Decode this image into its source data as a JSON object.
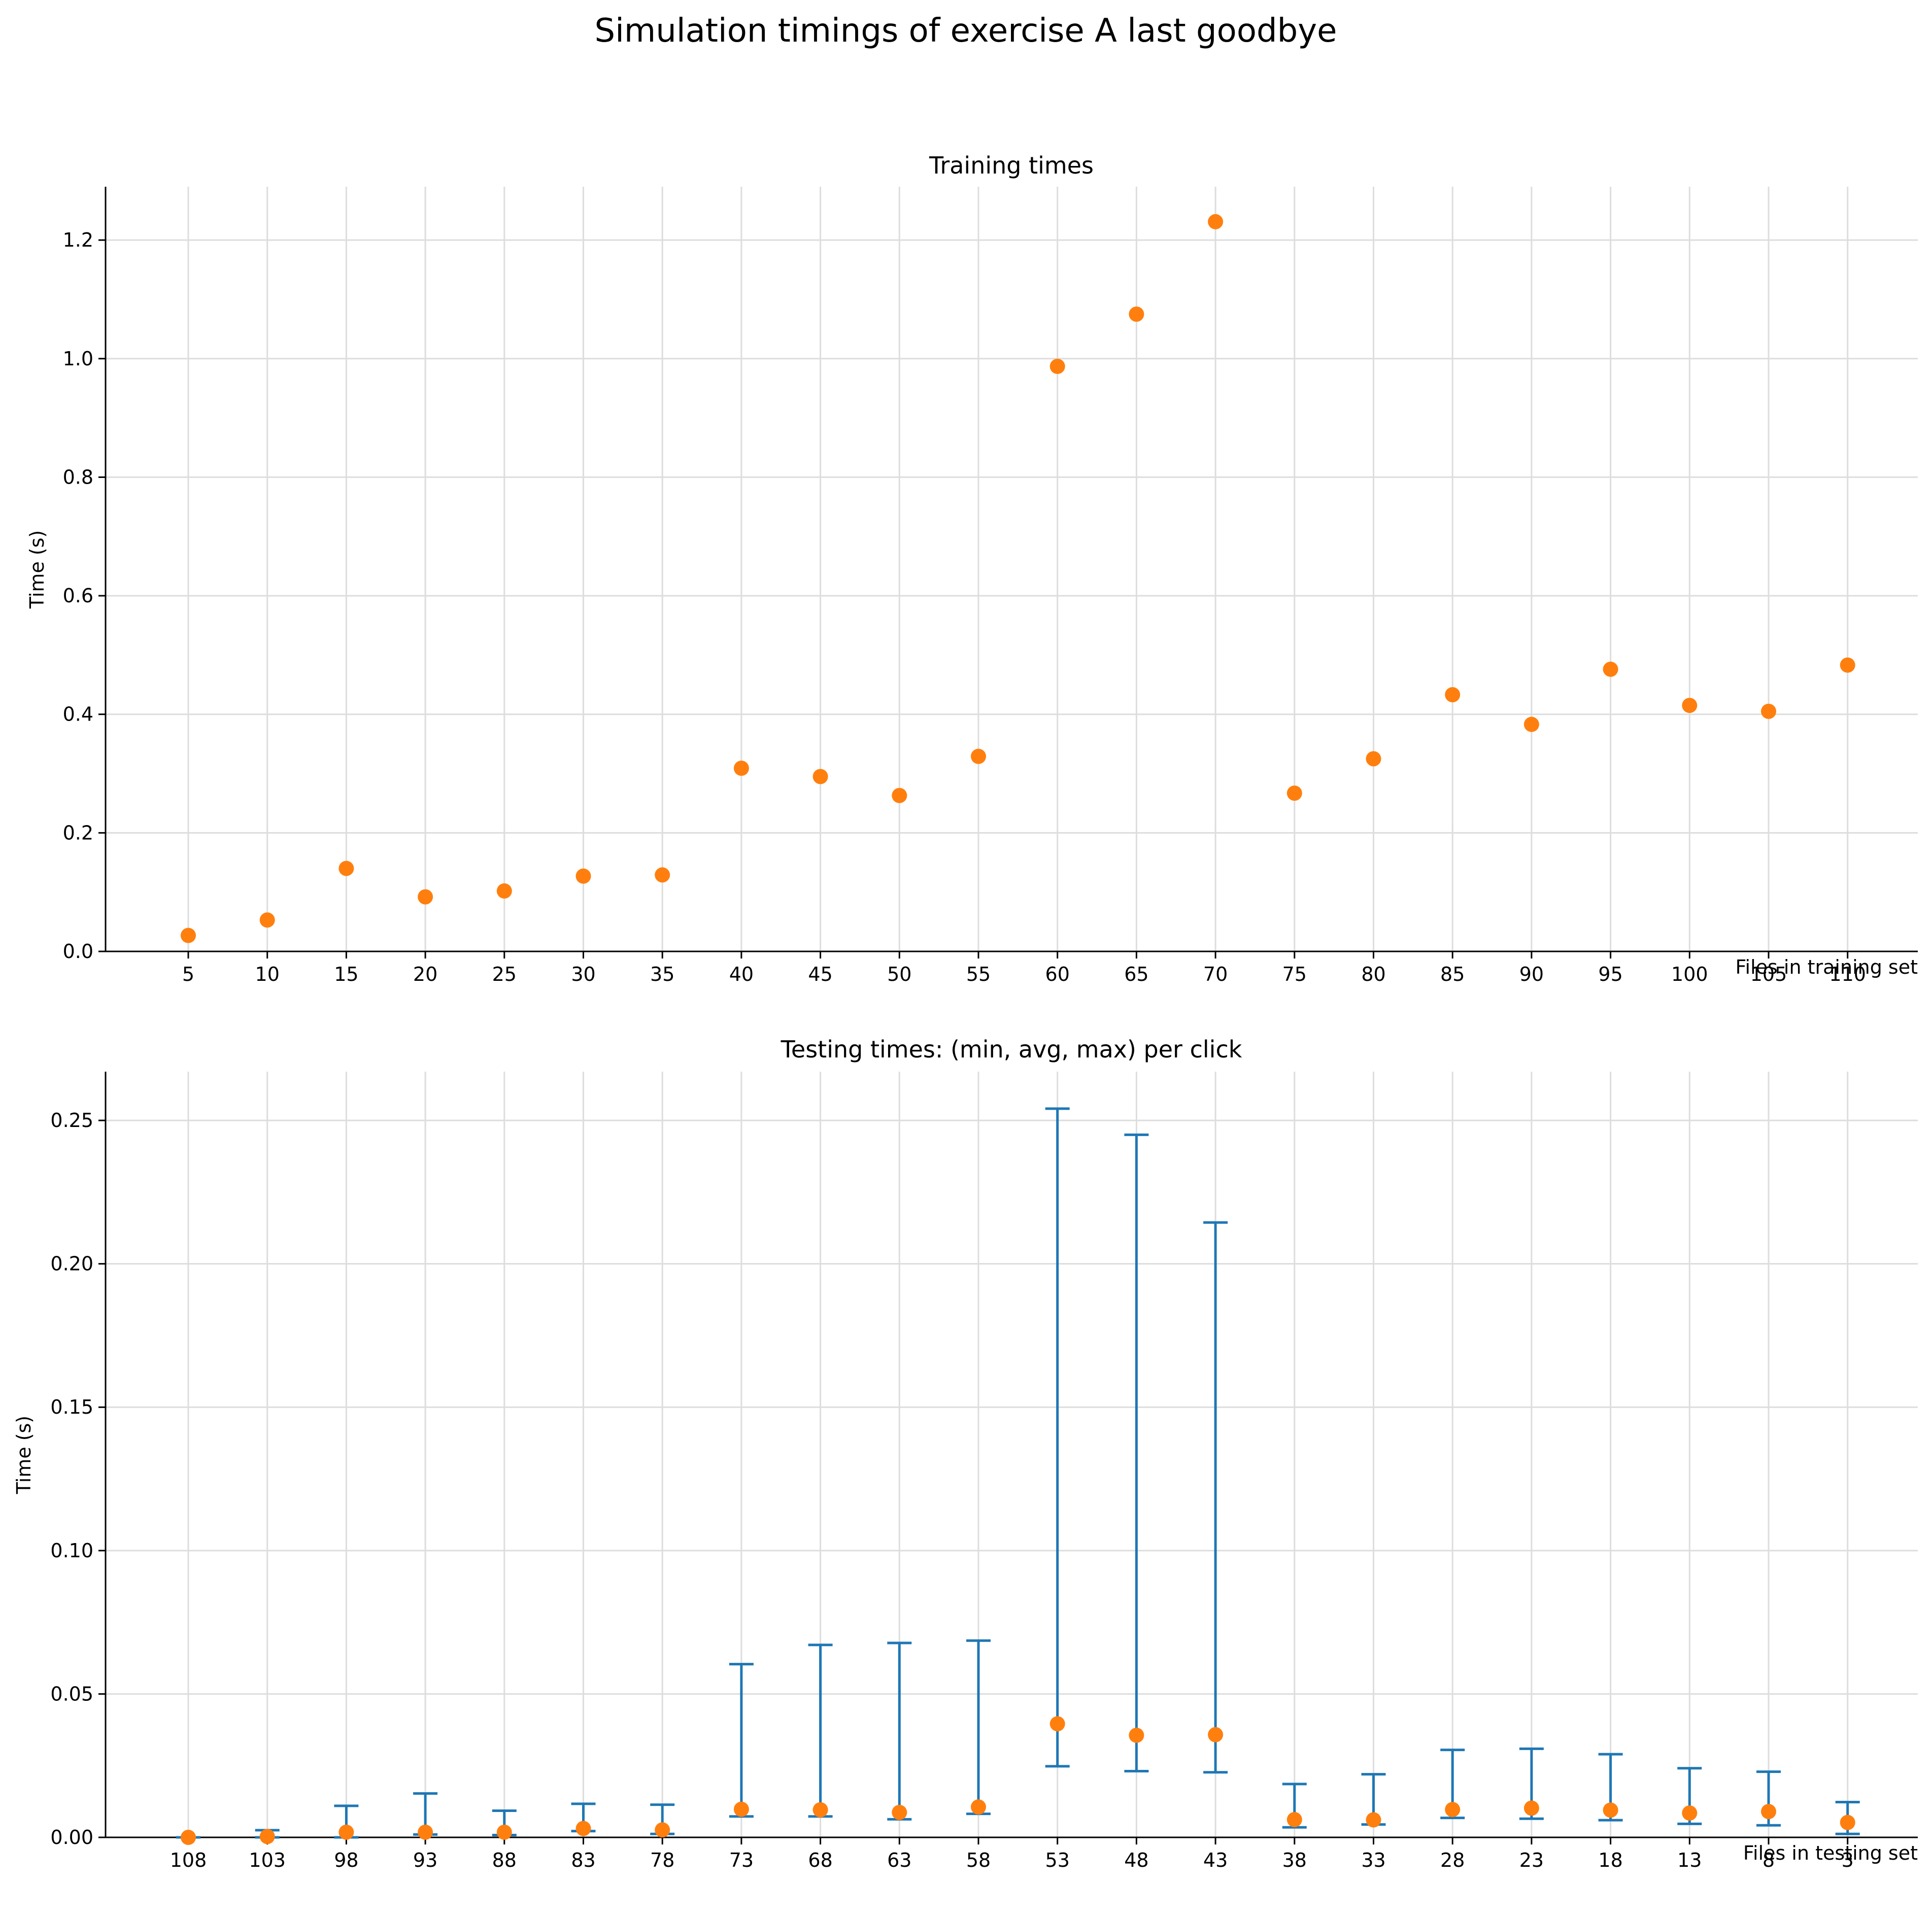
{
  "figure": {
    "title": "Simulation timings of exercise A last goodbye"
  },
  "colors": {
    "point": "#ff7f0e",
    "errorbar": "#1f77b4",
    "grid": "#dddddd"
  },
  "chart_data": [
    {
      "type": "scatter",
      "title": "Training times",
      "xlabel": "Files in training set",
      "ylabel": "Time (s)",
      "categories": [
        "5",
        "10",
        "15",
        "20",
        "25",
        "30",
        "35",
        "40",
        "45",
        "50",
        "55",
        "60",
        "65",
        "70",
        "75",
        "80",
        "85",
        "90",
        "95",
        "100",
        "105",
        "110"
      ],
      "values": [
        0.027,
        0.053,
        0.14,
        0.092,
        0.102,
        0.127,
        0.129,
        0.309,
        0.295,
        0.263,
        0.329,
        0.987,
        1.075,
        1.231,
        0.267,
        0.325,
        0.433,
        0.383,
        0.476,
        0.415,
        0.405,
        0.483
      ],
      "ylim": [
        0,
        1.29
      ],
      "yticks": [
        "0.0",
        "0.2",
        "0.4",
        "0.6",
        "0.8",
        "1.0",
        "1.2"
      ],
      "grid": true,
      "legend": "none"
    },
    {
      "type": "errorbar",
      "title": "Testing times: (min, avg, max) per click",
      "xlabel": "Files in testing set",
      "ylabel": "Time (s)",
      "categories": [
        "108",
        "103",
        "98",
        "93",
        "88",
        "83",
        "78",
        "73",
        "68",
        "63",
        "58",
        "53",
        "48",
        "43",
        "38",
        "33",
        "28",
        "23",
        "18",
        "13",
        "8",
        "3"
      ],
      "avg": [
        0.0,
        0.0003,
        0.0018,
        0.0018,
        0.0018,
        0.0031,
        0.0026,
        0.0098,
        0.0096,
        0.0087,
        0.0106,
        0.0396,
        0.0356,
        0.0358,
        0.0062,
        0.0061,
        0.0097,
        0.0102,
        0.0095,
        0.0085,
        0.009,
        0.0052
      ],
      "min": [
        0.0,
        0.0,
        0.0,
        0.001,
        0.0008,
        0.0022,
        0.0012,
        0.0073,
        0.0073,
        0.0063,
        0.0082,
        0.0248,
        0.0231,
        0.0227,
        0.0035,
        0.0045,
        0.0068,
        0.0065,
        0.006,
        0.0047,
        0.0042,
        0.0012
      ],
      "max": [
        0.0,
        0.0025,
        0.011,
        0.0153,
        0.0093,
        0.0117,
        0.0114,
        0.0604,
        0.0671,
        0.0678,
        0.0686,
        0.2541,
        0.245,
        0.2144,
        0.0186,
        0.022,
        0.0305,
        0.0309,
        0.029,
        0.0241,
        0.0229,
        0.0123
      ],
      "ylim": [
        0,
        0.267
      ],
      "yticks": [
        "0.00",
        "0.05",
        "0.10",
        "0.15",
        "0.20",
        "0.25"
      ],
      "grid": true,
      "legend": "none"
    }
  ]
}
